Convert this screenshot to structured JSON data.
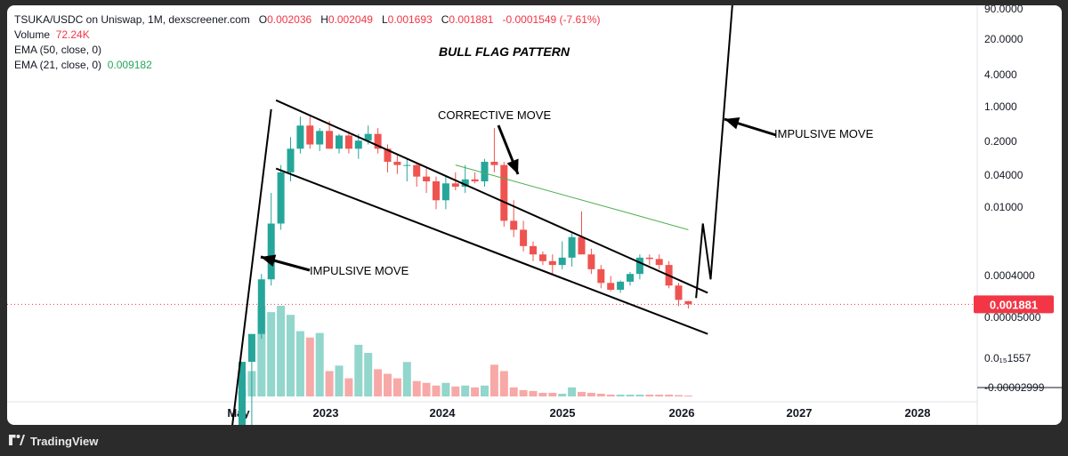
{
  "legend": {
    "pair": "TSUKA/USDC on Uniswap, 1M, dexscreener.com",
    "open_label": "O",
    "open": "0.002036",
    "high_label": "H",
    "high": "0.002049",
    "low_label": "L",
    "low": "0.001693",
    "close_label": "C",
    "close": "0.001881",
    "change": "-0.0001549 (-7.61%)",
    "volume_label": "Volume",
    "volume": "72.24K",
    "ema50_label": "EMA (50, close, 0)",
    "ema21_label": "EMA (21, close, 0)",
    "ema21_value": "0.009182"
  },
  "footer": {
    "brand": "TradingView"
  },
  "colors": {
    "up": "#26a69a",
    "down": "#ef5350",
    "vol_up": "#92d6cc",
    "vol_down": "#f7a9a7",
    "ema": "#4caf50",
    "price_tag": "#f23645",
    "annotation": "#000000"
  },
  "chart_data": {
    "type": "candlestick",
    "title": "BULL FLAG PATTERN",
    "y_scale": "log",
    "y_ticks": [
      "90.0000",
      "20.0000",
      "4.0000",
      "1.0000",
      "0.2000",
      "0.04000",
      "0.01000",
      "0.0004000",
      "0.00005000",
      "0.0₁₅1557",
      "-0.00002999"
    ],
    "x_ticks": [
      "May",
      "2023",
      "2024",
      "2025",
      "2026",
      "2027",
      "2028"
    ],
    "last_price_label": "0.001881",
    "annotations": [
      "IMPULSIVE MOVE",
      "CORRECTIVE MOVE",
      "IMPULSIVE MOVE"
    ],
    "candles": [
      {
        "o": 3e-05,
        "h": 4e-05,
        "l": 2.8e-05,
        "c": 0.00045,
        "v": 6
      },
      {
        "o": 0.00045,
        "h": 0.0006,
        "l": 8e-05,
        "c": 0.0009,
        "v": 28
      },
      {
        "o": 0.0009,
        "h": 0.004,
        "l": 0.0008,
        "c": 0.0035,
        "v": 100
      },
      {
        "o": 0.0035,
        "h": 0.03,
        "l": 0.003,
        "c": 0.014,
        "v": 93
      },
      {
        "o": 0.014,
        "h": 0.06,
        "l": 0.012,
        "c": 0.05,
        "v": 100
      },
      {
        "o": 0.05,
        "h": 0.12,
        "l": 0.04,
        "c": 0.09,
        "v": 90
      },
      {
        "o": 0.09,
        "h": 0.2,
        "l": 0.08,
        "c": 0.16,
        "v": 72
      },
      {
        "o": 0.16,
        "h": 0.2,
        "l": 0.09,
        "c": 0.1,
        "v": 65
      },
      {
        "o": 0.1,
        "h": 0.15,
        "l": 0.085,
        "c": 0.14,
        "v": 70
      },
      {
        "o": 0.14,
        "h": 0.18,
        "l": 0.09,
        "c": 0.09,
        "v": 28
      },
      {
        "o": 0.09,
        "h": 0.13,
        "l": 0.08,
        "c": 0.125,
        "v": 34
      },
      {
        "o": 0.125,
        "h": 0.14,
        "l": 0.08,
        "c": 0.09,
        "v": 20
      },
      {
        "o": 0.09,
        "h": 0.13,
        "l": 0.07,
        "c": 0.11,
        "v": 57
      },
      {
        "o": 0.11,
        "h": 0.16,
        "l": 0.1,
        "c": 0.13,
        "v": 48
      },
      {
        "o": 0.13,
        "h": 0.15,
        "l": 0.08,
        "c": 0.09,
        "v": 30
      },
      {
        "o": 0.09,
        "h": 0.1,
        "l": 0.05,
        "c": 0.065,
        "v": 25
      },
      {
        "o": 0.065,
        "h": 0.08,
        "l": 0.048,
        "c": 0.06,
        "v": 20
      },
      {
        "o": 0.06,
        "h": 0.07,
        "l": 0.04,
        "c": 0.06,
        "v": 38
      },
      {
        "o": 0.06,
        "h": 0.063,
        "l": 0.035,
        "c": 0.045,
        "v": 17
      },
      {
        "o": 0.045,
        "h": 0.055,
        "l": 0.03,
        "c": 0.04,
        "v": 15
      },
      {
        "o": 0.04,
        "h": 0.045,
        "l": 0.02,
        "c": 0.025,
        "v": 12
      },
      {
        "o": 0.025,
        "h": 0.045,
        "l": 0.02,
        "c": 0.038,
        "v": 15
      },
      {
        "o": 0.038,
        "h": 0.05,
        "l": 0.032,
        "c": 0.035,
        "v": 11
      },
      {
        "o": 0.035,
        "h": 0.06,
        "l": 0.03,
        "c": 0.042,
        "v": 12
      },
      {
        "o": 0.042,
        "h": 0.05,
        "l": 0.038,
        "c": 0.04,
        "v": 10
      },
      {
        "o": 0.04,
        "h": 0.07,
        "l": 0.035,
        "c": 0.065,
        "v": 12
      },
      {
        "o": 0.065,
        "h": 0.15,
        "l": 0.05,
        "c": 0.06,
        "v": 35
      },
      {
        "o": 0.06,
        "h": 0.065,
        "l": 0.013,
        "c": 0.015,
        "v": 28
      },
      {
        "o": 0.015,
        "h": 0.025,
        "l": 0.01,
        "c": 0.012,
        "v": 10
      },
      {
        "o": 0.012,
        "h": 0.015,
        "l": 0.007,
        "c": 0.008,
        "v": 7
      },
      {
        "o": 0.008,
        "h": 0.009,
        "l": 0.0055,
        "c": 0.0065,
        "v": 6
      },
      {
        "o": 0.0065,
        "h": 0.007,
        "l": 0.005,
        "c": 0.0055,
        "v": 4
      },
      {
        "o": 0.0055,
        "h": 0.0065,
        "l": 0.004,
        "c": 0.005,
        "v": 4
      },
      {
        "o": 0.005,
        "h": 0.009,
        "l": 0.0045,
        "c": 0.006,
        "v": 3
      },
      {
        "o": 0.006,
        "h": 0.011,
        "l": 0.0048,
        "c": 0.01,
        "v": 10
      },
      {
        "o": 0.01,
        "h": 0.019,
        "l": 0.008,
        "c": 0.0065,
        "v": 5
      },
      {
        "o": 0.0065,
        "h": 0.0075,
        "l": 0.004,
        "c": 0.0045,
        "v": 4
      },
      {
        "o": 0.0045,
        "h": 0.005,
        "l": 0.0028,
        "c": 0.0032,
        "v": 3
      },
      {
        "o": 0.0032,
        "h": 0.0038,
        "l": 0.0026,
        "c": 0.0027,
        "v": 2
      },
      {
        "o": 0.0027,
        "h": 0.0034,
        "l": 0.0025,
        "c": 0.0033,
        "v": 2
      },
      {
        "o": 0.0033,
        "h": 0.0042,
        "l": 0.003,
        "c": 0.004,
        "v": 2
      },
      {
        "o": 0.004,
        "h": 0.0065,
        "l": 0.0035,
        "c": 0.006,
        "v": 2
      },
      {
        "o": 0.006,
        "h": 0.0065,
        "l": 0.005,
        "c": 0.0058,
        "v": 2
      },
      {
        "o": 0.0058,
        "h": 0.0065,
        "l": 0.0045,
        "c": 0.005,
        "v": 2
      },
      {
        "o": 0.005,
        "h": 0.0055,
        "l": 0.0028,
        "c": 0.003,
        "v": 2
      },
      {
        "o": 0.003,
        "h": 0.0032,
        "l": 0.0018,
        "c": 0.0021,
        "v": 1.5
      },
      {
        "o": 0.002036,
        "h": 0.002049,
        "l": 0.001693,
        "c": 0.001881,
        "v": 1
      }
    ],
    "ema": [
      {
        "x": 22,
        "y": 0.06
      },
      {
        "x": 40,
        "y": 0.018
      },
      {
        "x": 46,
        "y": 0.012
      }
    ],
    "flag_upper": [
      {
        "x": 3.5,
        "y": 0.3
      },
      {
        "x": 48,
        "y": 0.0025
      }
    ],
    "flag_lower": [
      {
        "x": 3.5,
        "y": 0.055
      },
      {
        "x": 48,
        "y": 0.0009
      }
    ],
    "impulse_line": [
      {
        "x": -1.5,
        "y": 3.5e-05
      },
      {
        "x": 3,
        "y": 0.24
      }
    ],
    "projection": [
      {
        "x": 46.8,
        "y": 0.0022
      },
      {
        "x": 47.5,
        "y": 0.014
      },
      {
        "x": 48.3,
        "y": 0.0035
      },
      {
        "x": 51.5,
        "y": 60
      }
    ]
  }
}
